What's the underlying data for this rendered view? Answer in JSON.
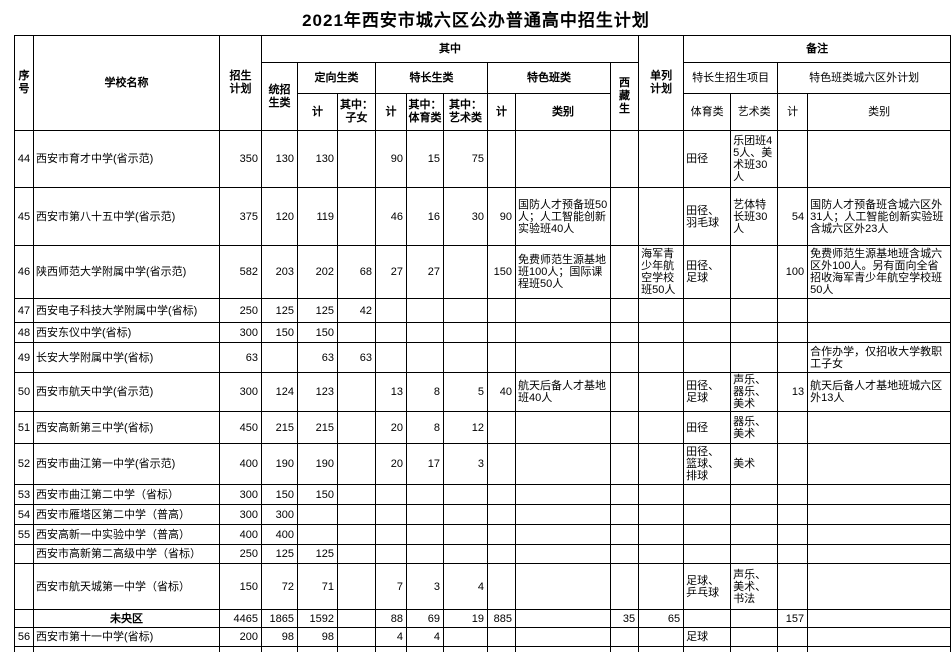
{
  "title": "2021年西安市城六区公办普通高中招生计划",
  "table": {
    "header": {
      "seq": "序号",
      "school": "学校名称",
      "plan": "招生计划",
      "among": "其中",
      "tongzhao": "统招生类",
      "dingxiang": "定向生类",
      "techang": "特长生类",
      "tese": "特色班类",
      "dx_ji": "计",
      "dx_zn": "其中：子女",
      "tc_ji": "计",
      "tc_ty": "其中：体育类",
      "tc_ys": "其中：艺术类",
      "ts_ji": "计",
      "ts_lb": "类别",
      "xizang": "西藏生",
      "danlie": "单列计划",
      "beizhu": "备注",
      "bz_txproj": "特长生招生项目",
      "bz_tsplan": "特色班类城六区外计划",
      "bz_ty": "体育类",
      "bz_ys": "艺术类",
      "bz_ji": "计",
      "bz_lb": "类别"
    },
    "rows": [
      {
        "seq": "44",
        "name": "西安市育才中学(省示范)",
        "plan": "350",
        "tz": "130",
        "dx_ji": "130",
        "dx_zn": "",
        "tc_ji": "90",
        "tc_ty": "15",
        "tc_ys": "75",
        "ts_ji": "",
        "ts_lb": "",
        "xz": "",
        "dl": "",
        "bz_ty": "田径",
        "bz_ys": "乐团班45人、美术班30人",
        "bz_ji": "",
        "bz_lb": ""
      },
      {
        "seq": "45",
        "name": "西安市第八十五中学(省示范)",
        "plan": "375",
        "tz": "120",
        "dx_ji": "119",
        "dx_zn": "",
        "tc_ji": "46",
        "tc_ty": "16",
        "tc_ys": "30",
        "ts_ji": "90",
        "ts_lb": "国防人才预备班50人；人工智能创新实验班40人",
        "xz": "",
        "dl": "",
        "bz_ty": "田径、羽毛球",
        "bz_ys": "艺体特长班30人",
        "bz_ji": "54",
        "bz_lb": "国防人才预备班含城六区外31人；人工智能创新实验班含城六区外23人"
      },
      {
        "seq": "46",
        "name": "陕西师范大学附属中学(省示范)",
        "plan": "582",
        "tz": "203",
        "dx_ji": "202",
        "dx_zn": "68",
        "tc_ji": "27",
        "tc_ty": "27",
        "tc_ys": "",
        "ts_ji": "150",
        "ts_lb": "免费师范生源基地班100人；国际课程班50人",
        "xz": "",
        "dl": "海军青少年航空学校班50人",
        "bz_ty": "田径、足球",
        "bz_ys": "",
        "bz_ji": "100",
        "bz_lb": "免费师范生源基地班含城六区外100人。另有面向全省招收海军青少年航空学校班50人"
      },
      {
        "seq": "47",
        "name": "西安电子科技大学附属中学(省标)",
        "plan": "250",
        "tz": "125",
        "dx_ji": "125",
        "dx_zn": "42",
        "tc_ji": "",
        "tc_ty": "",
        "tc_ys": "",
        "ts_ji": "",
        "ts_lb": "",
        "xz": "",
        "dl": "",
        "bz_ty": "",
        "bz_ys": "",
        "bz_ji": "",
        "bz_lb": ""
      },
      {
        "seq": "48",
        "name": "西安东仪中学(省标)",
        "plan": "300",
        "tz": "150",
        "dx_ji": "150",
        "dx_zn": "",
        "tc_ji": "",
        "tc_ty": "",
        "tc_ys": "",
        "ts_ji": "",
        "ts_lb": "",
        "xz": "",
        "dl": "",
        "bz_ty": "",
        "bz_ys": "",
        "bz_ji": "",
        "bz_lb": ""
      },
      {
        "seq": "49",
        "name": "长安大学附属中学(省标)",
        "plan": "63",
        "tz": "",
        "dx_ji": "63",
        "dx_zn": "63",
        "tc_ji": "",
        "tc_ty": "",
        "tc_ys": "",
        "ts_ji": "",
        "ts_lb": "",
        "xz": "",
        "dl": "",
        "bz_ty": "",
        "bz_ys": "",
        "bz_ji": "",
        "bz_lb": "合作办学，仅招收大学教职工子女"
      },
      {
        "seq": "50",
        "name": "西安市航天中学(省示范)",
        "plan": "300",
        "tz": "124",
        "dx_ji": "123",
        "dx_zn": "",
        "tc_ji": "13",
        "tc_ty": "8",
        "tc_ys": "5",
        "ts_ji": "40",
        "ts_lb": "航天后备人才基地班40人",
        "xz": "",
        "dl": "",
        "bz_ty": "田径、足球",
        "bz_ys": "声乐、器乐、美术",
        "bz_ji": "13",
        "bz_lb": "航天后备人才基地班城六区外13人"
      },
      {
        "seq": "51",
        "name": "西安高新第三中学(省标)",
        "plan": "450",
        "tz": "215",
        "dx_ji": "215",
        "dx_zn": "",
        "tc_ji": "20",
        "tc_ty": "8",
        "tc_ys": "12",
        "ts_ji": "",
        "ts_lb": "",
        "xz": "",
        "dl": "",
        "bz_ty": "田径",
        "bz_ys": "器乐、美术",
        "bz_ji": "",
        "bz_lb": ""
      },
      {
        "seq": "52",
        "name": "西安市曲江第一中学(省示范)",
        "plan": "400",
        "tz": "190",
        "dx_ji": "190",
        "dx_zn": "",
        "tc_ji": "20",
        "tc_ty": "17",
        "tc_ys": "3",
        "ts_ji": "",
        "ts_lb": "",
        "xz": "",
        "dl": "",
        "bz_ty": "田径、篮球、排球",
        "bz_ys": "美术",
        "bz_ji": "",
        "bz_lb": ""
      },
      {
        "seq": "53",
        "name": "西安市曲江第二中学（省标）",
        "plan": "300",
        "tz": "150",
        "dx_ji": "150",
        "dx_zn": "",
        "tc_ji": "",
        "tc_ty": "",
        "tc_ys": "",
        "ts_ji": "",
        "ts_lb": "",
        "xz": "",
        "dl": "",
        "bz_ty": "",
        "bz_ys": "",
        "bz_ji": "",
        "bz_lb": ""
      },
      {
        "seq": "54",
        "name": "西安市雁塔区第二中学（普高）",
        "plan": "300",
        "tz": "300",
        "dx_ji": "",
        "dx_zn": "",
        "tc_ji": "",
        "tc_ty": "",
        "tc_ys": "",
        "ts_ji": "",
        "ts_lb": "",
        "xz": "",
        "dl": "",
        "bz_ty": "",
        "bz_ys": "",
        "bz_ji": "",
        "bz_lb": ""
      },
      {
        "seq": "55",
        "name": "西安高新一中实验中学（普高）",
        "plan": "400",
        "tz": "400",
        "dx_ji": "",
        "dx_zn": "",
        "tc_ji": "",
        "tc_ty": "",
        "tc_ys": "",
        "ts_ji": "",
        "ts_lb": "",
        "xz": "",
        "dl": "",
        "bz_ty": "",
        "bz_ys": "",
        "bz_ji": "",
        "bz_lb": ""
      },
      {
        "seq": "",
        "name": "西安市高新第二高级中学（省标）",
        "plan": "250",
        "tz": "125",
        "dx_ji": "125",
        "dx_zn": "",
        "tc_ji": "",
        "tc_ty": "",
        "tc_ys": "",
        "ts_ji": "",
        "ts_lb": "",
        "xz": "",
        "dl": "",
        "bz_ty": "",
        "bz_ys": "",
        "bz_ji": "",
        "bz_lb": ""
      },
      {
        "seq": "",
        "name": "西安市航天城第一中学（省标）",
        "plan": "150",
        "tz": "72",
        "dx_ji": "71",
        "dx_zn": "",
        "tc_ji": "7",
        "tc_ty": "3",
        "tc_ys": "4",
        "ts_ji": "",
        "ts_lb": "",
        "xz": "",
        "dl": "",
        "bz_ty": "足球、乒乓球",
        "bz_ys": "声乐、美术、书法",
        "bz_ji": "",
        "bz_lb": ""
      },
      {
        "seq": "",
        "name": "未央区",
        "type": "summary",
        "plan": "4465",
        "tz": "1865",
        "dx_ji": "1592",
        "dx_zn": "",
        "tc_ji": "88",
        "tc_ty": "69",
        "tc_ys": "19",
        "ts_ji": "885",
        "ts_lb": "",
        "xz": "35",
        "dl": "65",
        "bz_ty": "",
        "bz_ys": "",
        "bz_ji": "157",
        "bz_lb": ""
      },
      {
        "seq": "56",
        "name": "西安市第十一中学(省标)",
        "plan": "200",
        "tz": "98",
        "dx_ji": "98",
        "dx_zn": "",
        "tc_ji": "4",
        "tc_ty": "4",
        "tc_ys": "",
        "ts_ji": "",
        "ts_lb": "",
        "xz": "",
        "dl": "",
        "bz_ty": "足球",
        "bz_ys": "",
        "bz_ji": "",
        "bz_lb": ""
      },
      {
        "seq": "",
        "name": "",
        "type": "partial",
        "plan": "",
        "tz": "",
        "dx_ji": "",
        "dx_zn": "",
        "tc_ji": "",
        "tc_ty": "",
        "tc_ys": "",
        "ts_ji": "",
        "ts_lb": "",
        "xz": "",
        "dl": "",
        "bz_ty": "",
        "bz_ys": "",
        "bz_ji": "",
        "bz_lb": ""
      }
    ]
  }
}
